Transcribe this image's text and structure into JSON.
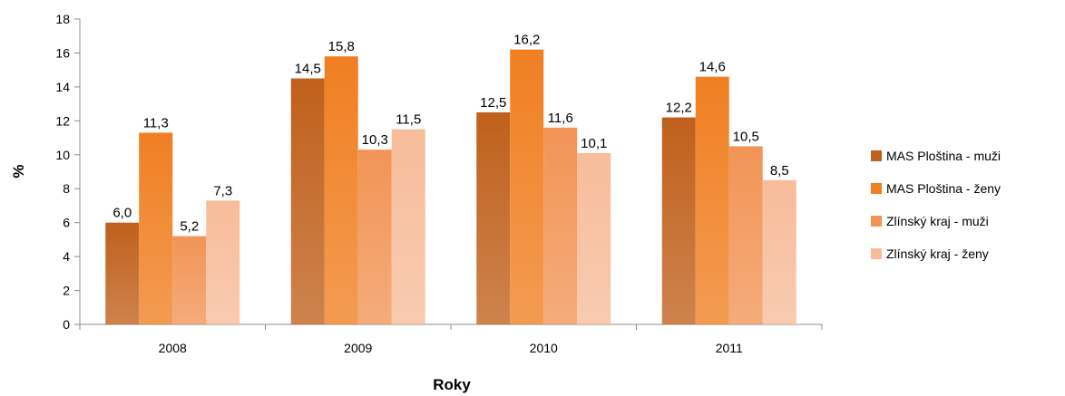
{
  "chart_data": {
    "type": "bar",
    "xlabel": "Roky",
    "ylabel": "%",
    "ylim": [
      0,
      18
    ],
    "yticks": [
      0,
      2,
      4,
      6,
      8,
      10,
      12,
      14,
      16,
      18
    ],
    "grid": false,
    "legend_position": "right",
    "categories": [
      "2008",
      "2009",
      "2010",
      "2011"
    ],
    "series": [
      {
        "name": "MAS Ploština - muži",
        "values": [
          6.0,
          14.5,
          12.5,
          12.2
        ],
        "labels": [
          "6,0",
          "14,5",
          "12,5",
          "12,2"
        ],
        "color": "#c0601c"
      },
      {
        "name": "MAS Ploština - ženy",
        "values": [
          11.3,
          15.8,
          16.2,
          14.6
        ],
        "labels": [
          "11,3",
          "15,8",
          "16,2",
          "14,6"
        ],
        "color": "#f07f22"
      },
      {
        "name": "Zlínský kraj - muži",
        "values": [
          5.2,
          10.3,
          11.6,
          10.5
        ],
        "labels": [
          "5,2",
          "10,3",
          "11,6",
          "10,5"
        ],
        "color": "#f29456"
      },
      {
        "name": "Zlínský kraj - ženy",
        "values": [
          7.3,
          11.5,
          10.1,
          8.5
        ],
        "labels": [
          "7,3",
          "11,5",
          "10,1",
          "8,5"
        ],
        "color": "#f7bc9a"
      }
    ]
  }
}
